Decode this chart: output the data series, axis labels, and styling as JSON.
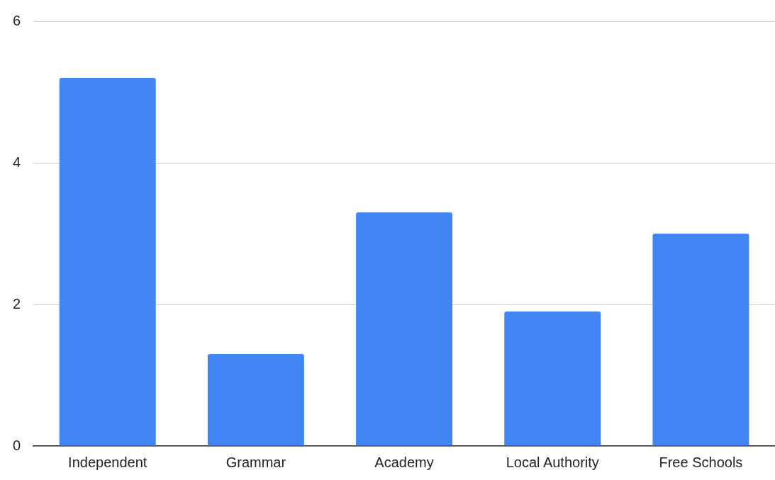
{
  "chart_data": {
    "type": "bar",
    "categories": [
      "Independent",
      "Grammar",
      "Academy",
      "Local Authority",
      "Free Schools"
    ],
    "values": [
      5.2,
      1.3,
      3.3,
      1.9,
      3
    ],
    "color": "#4285f4",
    "ylim": [
      0,
      6
    ],
    "yticks": [
      0,
      2,
      4,
      6
    ],
    "grid": "y",
    "legend": false
  }
}
